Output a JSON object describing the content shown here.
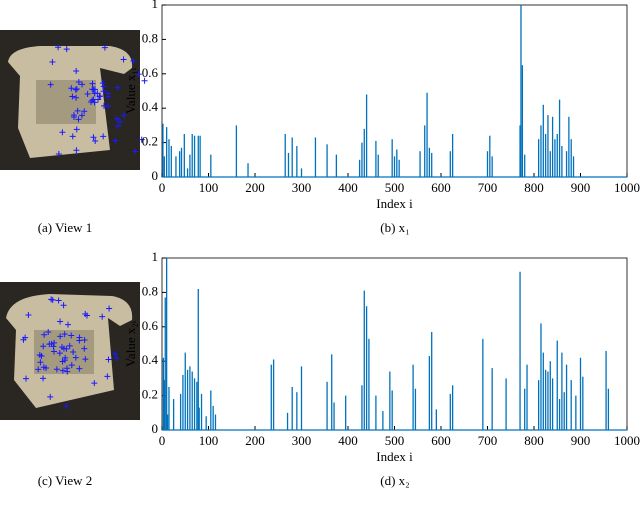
{
  "images": [
    {
      "caption": "(a) View 1"
    },
    {
      "caption": "(c) View 2"
    }
  ],
  "chart_data": [
    {
      "type": "stem",
      "caption": "(b) x₁",
      "xlabel": "Index i",
      "ylabel": "Value x₁ᵢ",
      "color": "#0072bd",
      "x": [
        2,
        5,
        10,
        15,
        20,
        30,
        38,
        42,
        48,
        55,
        60,
        65,
        70,
        78,
        82,
        105,
        160,
        185,
        265,
        272,
        280,
        290,
        300,
        330,
        355,
        375,
        425,
        430,
        435,
        440,
        460,
        465,
        495,
        500,
        505,
        510,
        555,
        565,
        570,
        575,
        580,
        620,
        625,
        700,
        705,
        710,
        770,
        772,
        775,
        780,
        810,
        815,
        820,
        825,
        830,
        835,
        840,
        845,
        850,
        855,
        860,
        870,
        875,
        880,
        885
      ],
      "values": [
        0.31,
        0.12,
        0.29,
        0.22,
        0.18,
        0.12,
        0.15,
        0.17,
        0.25,
        0.05,
        0.13,
        0.25,
        0.24,
        0.24,
        0.24,
        0.13,
        0.3,
        0.08,
        0.25,
        0.14,
        0.23,
        0.18,
        0.05,
        0.23,
        0.19,
        0.13,
        0.1,
        0.2,
        0.28,
        0.48,
        0.21,
        0.13,
        0.22,
        0.12,
        0.16,
        0.1,
        0.15,
        0.3,
        0.49,
        0.17,
        0.14,
        0.15,
        0.25,
        0.15,
        0.24,
        0.12,
        0.3,
        1.0,
        0.65,
        0.13,
        0.22,
        0.3,
        0.42,
        0.25,
        0.36,
        0.15,
        0.35,
        0.22,
        0.25,
        0.45,
        0.18,
        0.15,
        0.35,
        0.22,
        0.12
      ],
      "xlim": [
        0,
        1000
      ],
      "ylim": [
        0,
        1
      ],
      "xticks": [
        0,
        100,
        200,
        300,
        400,
        500,
        600,
        700,
        800,
        900,
        1000
      ],
      "yticks": [
        0,
        0.2,
        0.4,
        0.6,
        0.8,
        1
      ]
    },
    {
      "type": "stem",
      "caption": "(d) x₂",
      "xlabel": "Index i",
      "ylabel": "Value x₂ᵢ",
      "color": "#0072bd",
      "x": [
        3,
        5,
        7,
        10,
        12,
        15,
        25,
        40,
        45,
        50,
        55,
        60,
        65,
        70,
        75,
        78,
        80,
        85,
        95,
        105,
        110,
        115,
        235,
        240,
        270,
        280,
        290,
        300,
        355,
        365,
        370,
        395,
        430,
        435,
        440,
        445,
        460,
        475,
        490,
        495,
        540,
        545,
        575,
        580,
        590,
        620,
        625,
        690,
        710,
        740,
        770,
        780,
        785,
        810,
        815,
        820,
        825,
        830,
        835,
        840,
        850,
        855,
        860,
        865,
        870,
        880,
        890,
        900,
        905,
        955,
        960
      ],
      "values": [
        0.42,
        0.29,
        0.77,
        1.0,
        0.09,
        0.25,
        0.18,
        0.21,
        0.32,
        0.45,
        0.35,
        0.37,
        0.34,
        0.3,
        0.28,
        0.82,
        0.13,
        0.21,
        0.08,
        0.23,
        0.14,
        0.09,
        0.38,
        0.41,
        0.1,
        0.25,
        0.22,
        0.37,
        0.28,
        0.44,
        0.16,
        0.2,
        0.26,
        0.81,
        0.72,
        0.53,
        0.2,
        0.11,
        0.34,
        0.23,
        0.38,
        0.24,
        0.43,
        0.57,
        0.12,
        0.21,
        0.26,
        0.53,
        0.36,
        0.3,
        0.92,
        0.24,
        0.38,
        0.29,
        0.62,
        0.45,
        0.35,
        0.34,
        0.4,
        0.3,
        0.52,
        0.18,
        0.45,
        0.22,
        0.38,
        0.29,
        0.2,
        0.42,
        0.31,
        0.46,
        0.24
      ],
      "xlim": [
        0,
        1000
      ],
      "ylim": [
        0,
        1
      ],
      "xticks": [
        0,
        100,
        200,
        300,
        400,
        500,
        600,
        700,
        800,
        900,
        1000
      ],
      "yticks": [
        0,
        0.2,
        0.4,
        0.6,
        0.8,
        1
      ]
    }
  ]
}
